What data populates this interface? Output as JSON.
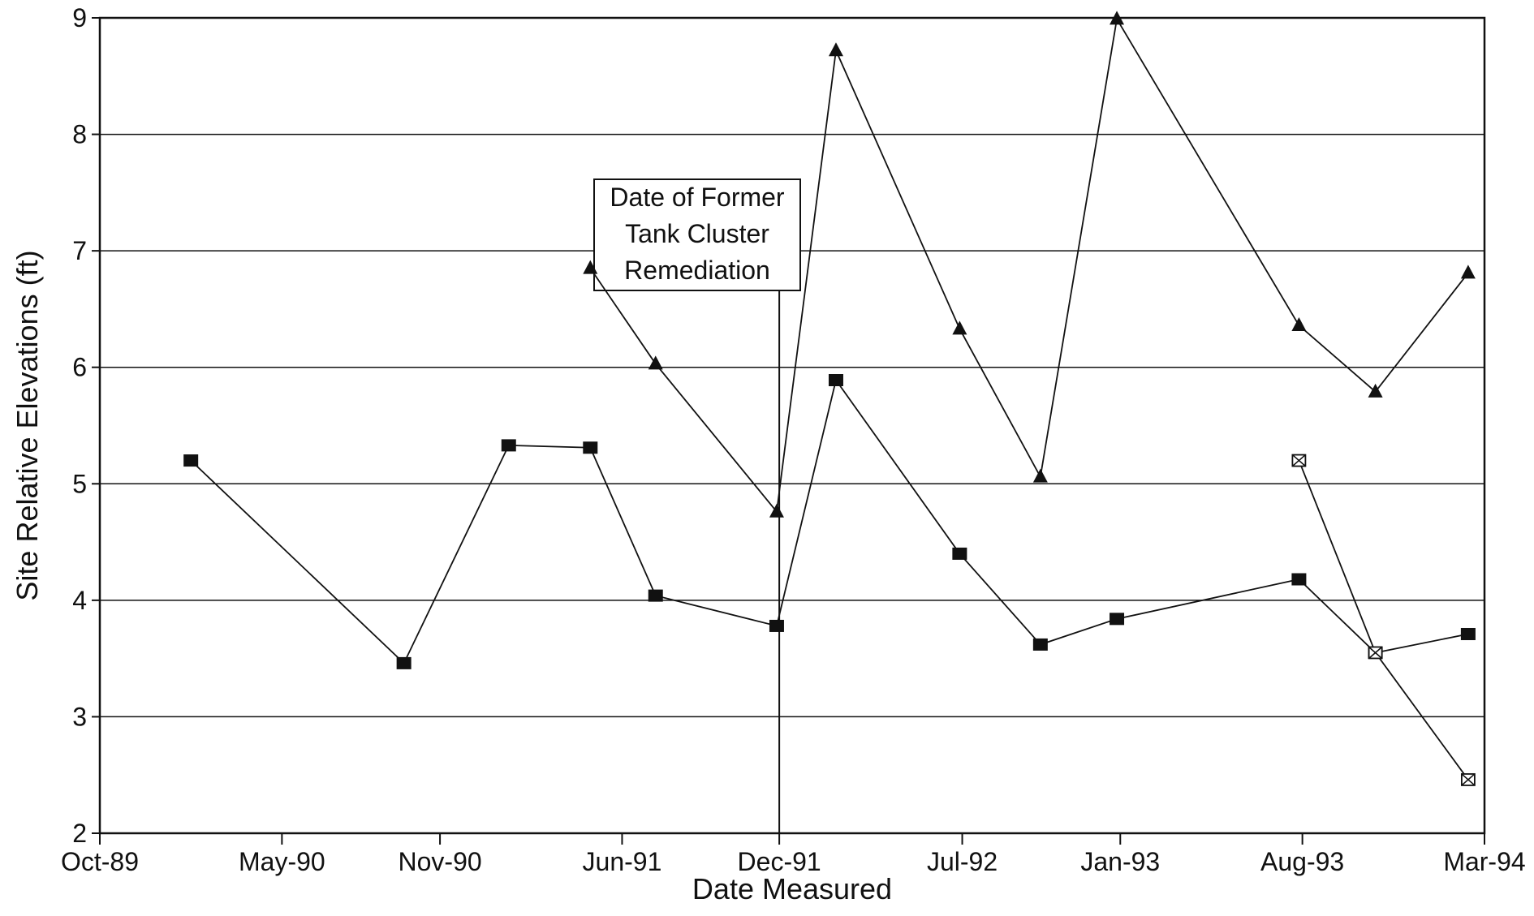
{
  "chart_data": {
    "type": "line",
    "title": "",
    "xlabel": "Date Measured",
    "ylabel": "Site Relative Elevations (ft)",
    "xlim": [
      "1989-10-01",
      "1994-03-01"
    ],
    "ylim": [
      2,
      9
    ],
    "x_ticks": [
      {
        "date": "1989-10-01",
        "label": "Oct-89"
      },
      {
        "date": "1990-05-01",
        "label": "May-90"
      },
      {
        "date": "1990-11-01",
        "label": "Nov-90"
      },
      {
        "date": "1991-06-01",
        "label": "Jun-91"
      },
      {
        "date": "1991-12-01",
        "label": "Dec-91"
      },
      {
        "date": "1992-07-01",
        "label": "Jul-92"
      },
      {
        "date": "1993-01-01",
        "label": "Jan-93"
      },
      {
        "date": "1993-08-01",
        "label": "Aug-93"
      },
      {
        "date": "1994-03-01",
        "label": "Mar-94"
      }
    ],
    "y_ticks": [
      2,
      3,
      4,
      5,
      6,
      7,
      8,
      9
    ],
    "grid": "horizontal",
    "legend": "none",
    "series": [
      {
        "marker": "square",
        "color": "#111111",
        "points": [
          {
            "x": "1990-01-15",
            "y": 5.2
          },
          {
            "x": "1990-09-20",
            "y": 3.46
          },
          {
            "x": "1991-01-20",
            "y": 5.33
          },
          {
            "x": "1991-04-25",
            "y": 5.31
          },
          {
            "x": "1991-07-10",
            "y": 4.04
          },
          {
            "x": "1991-11-28",
            "y": 3.78
          },
          {
            "x": "1992-02-05",
            "y": 5.89
          },
          {
            "x": "1992-06-28",
            "y": 4.4
          },
          {
            "x": "1992-09-30",
            "y": 3.62
          },
          {
            "x": "1992-12-28",
            "y": 3.84
          },
          {
            "x": "1993-07-28",
            "y": 4.18
          },
          {
            "x": "1993-10-25",
            "y": 3.55
          },
          {
            "x": "1994-02-10",
            "y": 3.71
          }
        ]
      },
      {
        "marker": "triangle",
        "color": "#111111",
        "points": [
          {
            "x": "1991-04-25",
            "y": 6.85
          },
          {
            "x": "1991-07-10",
            "y": 6.03
          },
          {
            "x": "1991-11-28",
            "y": 4.76
          },
          {
            "x": "1992-02-05",
            "y": 8.72
          },
          {
            "x": "1992-06-28",
            "y": 6.33
          },
          {
            "x": "1992-09-30",
            "y": 5.06
          },
          {
            "x": "1992-12-28",
            "y": 8.99
          },
          {
            "x": "1993-07-28",
            "y": 6.36
          },
          {
            "x": "1993-10-25",
            "y": 5.79
          },
          {
            "x": "1994-02-10",
            "y": 6.81
          }
        ]
      },
      {
        "marker": "boxed-x",
        "color": "#111111",
        "points": [
          {
            "x": "1993-07-28",
            "y": 5.2
          },
          {
            "x": "1993-10-25",
            "y": 3.55
          },
          {
            "x": "1994-02-10",
            "y": 2.46
          }
        ]
      }
    ],
    "annotation": {
      "lines": [
        "Date of Former",
        "Tank Cluster",
        "Remediation"
      ],
      "x": "1991-12-01"
    }
  }
}
